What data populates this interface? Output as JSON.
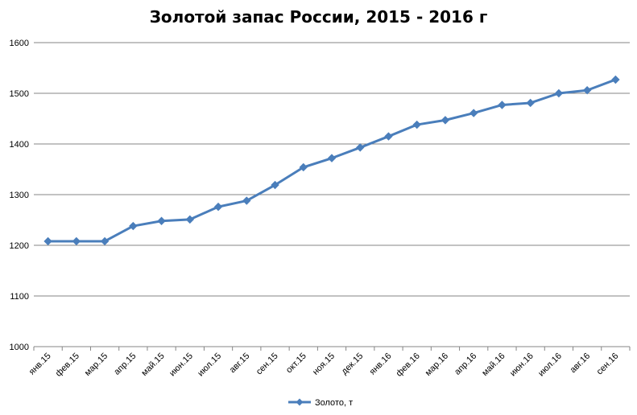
{
  "chart_data": {
    "type": "line",
    "title": "Золотой запас России, 2015 - 2016 г",
    "xlabel": "",
    "ylabel": "",
    "ylim": [
      1000,
      1600
    ],
    "yticks": [
      "1000",
      "1100",
      "1200",
      "1300",
      "1400",
      "1500",
      "1600"
    ],
    "grid": true,
    "legend": "bottom",
    "categories": [
      "янв.15",
      "фев.15",
      "мар.15",
      "апр.15",
      "май.15",
      "июн.15",
      "июл.15",
      "авг.15",
      "сен.15",
      "окт.15",
      "ноя.15",
      "дек.15",
      "янв.16",
      "фев.16",
      "мар.16",
      "апр.16",
      "май.16",
      "июн.16",
      "июл.16",
      "авг.16",
      "сен.16"
    ],
    "series": [
      {
        "name": "Золото, т",
        "color": "#4a7ebb",
        "marker": "diamond",
        "values": [
          1208,
          1208,
          1208,
          1238,
          1248,
          1251,
          1276,
          1288,
          1319,
          1354,
          1372,
          1393,
          1415,
          1438,
          1447,
          1461,
          1477,
          1481,
          1500,
          1506,
          1527
        ]
      }
    ]
  }
}
